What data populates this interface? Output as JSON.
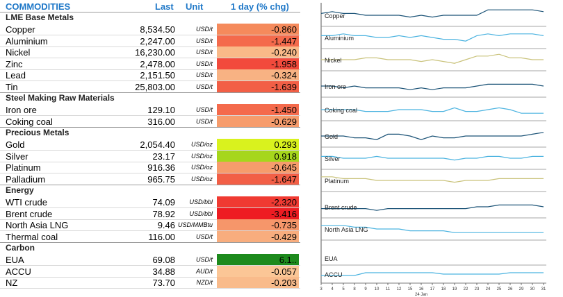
{
  "header": {
    "title": "COMMODITIES",
    "last": "Last",
    "unit": "Unit",
    "change": "1 day (% chg)"
  },
  "sections": [
    {
      "title": "LME Base Metals",
      "rows": [
        {
          "name": "Copper",
          "last": "8,534.50",
          "unit": "USD/t",
          "chg": "-0.860",
          "color": "#f58a5c"
        },
        {
          "name": "Aluminium",
          "last": "2,247.00",
          "unit": "USD/t",
          "chg": "-1.447",
          "color": "#f46a4c"
        },
        {
          "name": "Nickel",
          "last": "16,230.00",
          "unit": "USD/t",
          "chg": "-0.240",
          "color": "#f9b988"
        },
        {
          "name": "Zinc",
          "last": "2,478.00",
          "unit": "USD/t",
          "chg": "-1.958",
          "color": "#f24a3c"
        },
        {
          "name": "Lead",
          "last": "2,151.50",
          "unit": "USD/t",
          "chg": "-0.324",
          "color": "#f8b283"
        },
        {
          "name": "Tin",
          "last": "25,803.00",
          "unit": "USD/t",
          "chg": "-1.639",
          "color": "#f25f46"
        }
      ]
    },
    {
      "title": "Steel Making Raw Materials",
      "rows": [
        {
          "name": "Iron ore",
          "last": "129.10",
          "unit": "USD/t",
          "chg": "-1.450",
          "color": "#f46a4c"
        },
        {
          "name": "Coking coal",
          "last": "316.00",
          "unit": "USD/t",
          "chg": "-0.629",
          "color": "#f69c6c"
        }
      ]
    },
    {
      "title": "Precious Metals",
      "rows": [
        {
          "name": "Gold",
          "last": "2,054.40",
          "unit": "USD/oz",
          "chg": "0.293",
          "color": "#d9f21e"
        },
        {
          "name": "Silver",
          "last": "23.17",
          "unit": "USD/oz",
          "chg": "0.918",
          "color": "#a6d61c"
        },
        {
          "name": "Platinum",
          "last": "916.36",
          "unit": "USD/oz",
          "chg": "-0.645",
          "color": "#f69c6c"
        },
        {
          "name": "Palladium",
          "last": "965.75",
          "unit": "USD/oz",
          "chg": "-1.647",
          "color": "#f25f46"
        }
      ]
    },
    {
      "title": "Energy",
      "rows": [
        {
          "name": "WTI crude",
          "last": "74.09",
          "unit": "USD/bbl",
          "chg": "-2.320",
          "color": "#f03a32"
        },
        {
          "name": "Brent crude",
          "last": "78.92",
          "unit": "USD/bbl",
          "chg": "-3.416",
          "color": "#ee1c22"
        },
        {
          "name": "North Asia LNG",
          "last": "9.46",
          "unit": "USD/MMBtu",
          "chg": "-0.735",
          "color": "#f6966a"
        },
        {
          "name": "Thermal coal",
          "last": "116.00",
          "unit": "USD/t",
          "chg": "-0.429",
          "color": "#f8ad7e"
        }
      ]
    },
    {
      "title": "Carbon",
      "rows": [
        {
          "name": "EUA",
          "last": "69.08",
          "unit": "USD/t",
          "chg": "6.1..",
          "color": "#1d8a1d"
        },
        {
          "name": "ACCU",
          "last": "34.88",
          "unit": "AUD/t",
          "chg": "-0.057",
          "color": "#fbc696"
        },
        {
          "name": "NZ",
          "last": "73.70",
          "unit": "NZD/t",
          "chg": "-0.203",
          "color": "#f9bb8b"
        }
      ]
    }
  ],
  "charts": {
    "x_ticks": [
      "3",
      "4",
      "5",
      "8",
      "9",
      "10",
      "11",
      "12",
      "15",
      "16",
      "17",
      "18",
      "19",
      "22",
      "23",
      "24",
      "25",
      "26",
      "29",
      "30",
      "31"
    ],
    "x_sublabel": "24 Jan",
    "panels": [
      {
        "label": "Copper",
        "color": "#1a5276",
        "values": [
          6,
          7,
          6,
          6,
          5,
          5,
          5,
          5,
          4,
          5,
          4,
          5,
          5,
          5,
          5,
          8,
          8,
          8,
          8,
          8,
          7
        ]
      },
      {
        "label": "Aluminium",
        "color": "#4bb3e0",
        "values": [
          6,
          6,
          7,
          6,
          6,
          5,
          5,
          6,
          5,
          6,
          5,
          4,
          4,
          3,
          6,
          7,
          6,
          7,
          7,
          7,
          6
        ]
      },
      {
        "label": "Nickel",
        "color": "#c9c27a",
        "values": [
          5,
          5,
          5,
          5,
          6,
          6,
          5,
          5,
          5,
          4,
          5,
          4,
          3,
          5,
          7,
          7,
          8,
          6,
          6,
          5,
          5
        ]
      },
      {
        "label": "Iron ore",
        "color": "#1a5276",
        "values": [
          5,
          5,
          4,
          5,
          4,
          4,
          4,
          4,
          3,
          4,
          3,
          4,
          4,
          4,
          5,
          6,
          6,
          6,
          6,
          6,
          5
        ]
      },
      {
        "label": "Coking coal",
        "color": "#4bb3e0",
        "values": [
          5,
          5,
          5,
          5,
          4,
          4,
          4,
          5,
          5,
          5,
          4,
          4,
          6,
          4,
          4,
          5,
          6,
          5,
          3,
          3,
          3
        ]
      },
      {
        "label": "Gold",
        "color": "#1a5276",
        "values": [
          5,
          5,
          5,
          4,
          4,
          3,
          6,
          6,
          5,
          3,
          5,
          4,
          4,
          5,
          5,
          5,
          5,
          5,
          5,
          6,
          7
        ]
      },
      {
        "label": "Silver",
        "color": "#4bb3e0",
        "values": [
          6,
          6,
          5,
          5,
          5,
          6,
          5,
          5,
          5,
          5,
          5,
          5,
          4,
          5,
          5,
          6,
          6,
          5,
          5,
          6,
          6
        ]
      },
      {
        "label": "Platinum",
        "color": "#c9c27a",
        "values": [
          7,
          7,
          6,
          6,
          6,
          5,
          5,
          5,
          5,
          5,
          5,
          5,
          4,
          5,
          5,
          5,
          6,
          6,
          6,
          6,
          6
        ]
      },
      {
        "label": "Brent crude",
        "color": "#1a5276",
        "values": [
          4,
          4,
          4,
          4,
          4,
          3,
          4,
          4,
          4,
          4,
          4,
          4,
          4,
          4,
          5,
          5,
          6,
          6,
          6,
          6,
          5
        ]
      },
      {
        "label": "North Asia LNG",
        "color": "#4bb3e0",
        "values": [
          7,
          7,
          7,
          6,
          6,
          5,
          5,
          5,
          4,
          4,
          4,
          4,
          3,
          3,
          3,
          3,
          3,
          3,
          3,
          3,
          3
        ]
      },
      {
        "label": "EUA",
        "color": "#1a5276",
        "values": []
      },
      {
        "label": "ACCU",
        "color": "#4bb3e0",
        "values": [
          4,
          4,
          4,
          4,
          6,
          6,
          6,
          6,
          6,
          6,
          6,
          5,
          5,
          5,
          5,
          5,
          5,
          6,
          6,
          6,
          6
        ]
      }
    ]
  }
}
